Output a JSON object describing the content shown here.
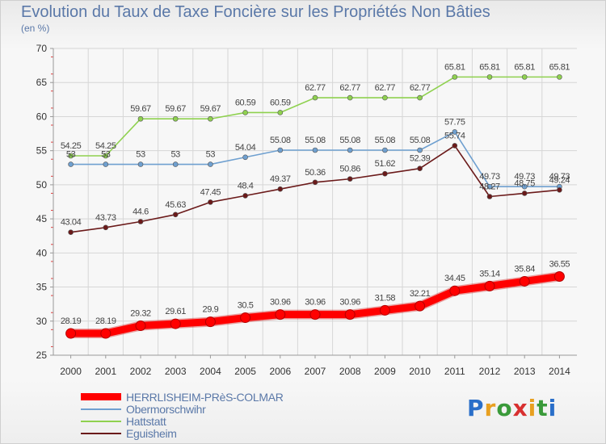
{
  "chart_data": {
    "type": "line",
    "title": "Evolution du Taux de Taxe Foncière sur les Propriétés Non Bâties",
    "subtitle": "(en %)",
    "xlabel": "",
    "ylabel": "",
    "x": [
      "2000",
      "2001",
      "2002",
      "2003",
      "2004",
      "2005",
      "2006",
      "2007",
      "2008",
      "2009",
      "2010",
      "2011",
      "2012",
      "2013",
      "2014"
    ],
    "ylim": [
      25,
      70
    ],
    "yticks": [
      25,
      30,
      35,
      40,
      45,
      50,
      55,
      60,
      65,
      70
    ],
    "grid": true,
    "legend_position": "bottom-left",
    "series": [
      {
        "name": "HERRLISHEIM-PRèS-COLMAR",
        "color": "#ff0000",
        "values": [
          28.19,
          28.19,
          29.32,
          29.61,
          29.9,
          30.5,
          30.96,
          30.96,
          30.96,
          31.58,
          32.21,
          34.45,
          35.14,
          35.84,
          36.55
        ],
        "labels": [
          "28.19",
          "28.19",
          "29.32",
          "29.61",
          "29.9",
          "30.5",
          "30.96",
          "30.96",
          "30.96",
          "31.58",
          "32.21",
          "34.45",
          "35.14",
          "35.84",
          "36.55"
        ]
      },
      {
        "name": "Obermorschwihr",
        "color": "#6fa0d0",
        "values": [
          53,
          53,
          53,
          53,
          53,
          54.04,
          55.08,
          55.08,
          55.08,
          55.08,
          55.08,
          57.75,
          49.73,
          49.73,
          49.73
        ],
        "labels": [
          "53",
          "53",
          "53",
          "53",
          "53",
          "54.04",
          "55.08",
          "55.08",
          "55.08",
          "55.08",
          "55.08",
          "57.75",
          "49.73",
          "49.73",
          "49.73"
        ]
      },
      {
        "name": "Hattstatt",
        "color": "#8fd14f",
        "values": [
          54.25,
          54.25,
          59.67,
          59.67,
          59.67,
          60.59,
          60.59,
          62.77,
          62.77,
          62.77,
          62.77,
          65.81,
          65.81,
          65.81,
          65.81
        ],
        "labels": [
          "54.25",
          "54.25",
          "59.67",
          "59.67",
          "59.67",
          "60.59",
          "60.59",
          "62.77",
          "62.77",
          "62.77",
          "62.77",
          "65.81",
          "65.81",
          "65.81",
          "65.81"
        ]
      },
      {
        "name": "Eguisheim",
        "color": "#6b1a1a",
        "values": [
          43.04,
          43.73,
          44.6,
          45.63,
          47.45,
          48.4,
          49.37,
          50.36,
          50.86,
          51.62,
          52.39,
          55.74,
          48.27,
          48.75,
          49.24
        ],
        "labels": [
          "43.04",
          "43.73",
          "44.6",
          "45.63",
          "47.45",
          "48.4",
          "49.37",
          "50.36",
          "50.86",
          "51.62",
          "52.39",
          "55.74",
          "48.27",
          "48.75",
          "49.24"
        ]
      }
    ]
  },
  "logo": {
    "text": "Proxiti"
  }
}
